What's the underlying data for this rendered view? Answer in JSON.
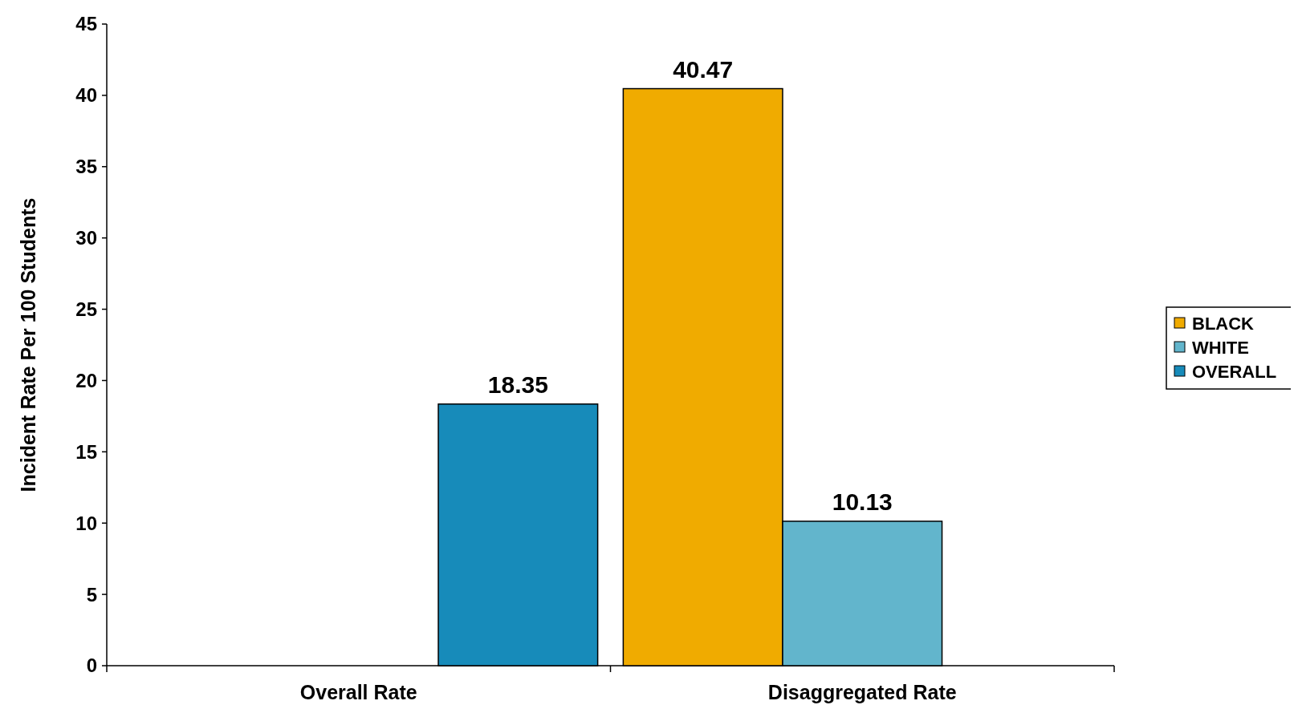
{
  "chart_data": {
    "type": "bar",
    "ylabel": "Incident Rate Per 100 Students",
    "categories": [
      "Overall Rate",
      "Disaggregated Rate"
    ],
    "series": [
      {
        "name": "BLACK",
        "color": "#f0ab00",
        "values": [
          null,
          40.47
        ]
      },
      {
        "name": "WHITE",
        "color": "#62b5cc",
        "values": [
          null,
          10.13
        ]
      },
      {
        "name": "OVERALL",
        "color": "#178bba",
        "values": [
          18.35,
          null
        ]
      }
    ],
    "ylim": [
      0,
      45
    ],
    "yticks": [
      0,
      5,
      10,
      15,
      20,
      25,
      30,
      35,
      40,
      45
    ],
    "data_labels": true,
    "legend": "right",
    "grid": false
  }
}
